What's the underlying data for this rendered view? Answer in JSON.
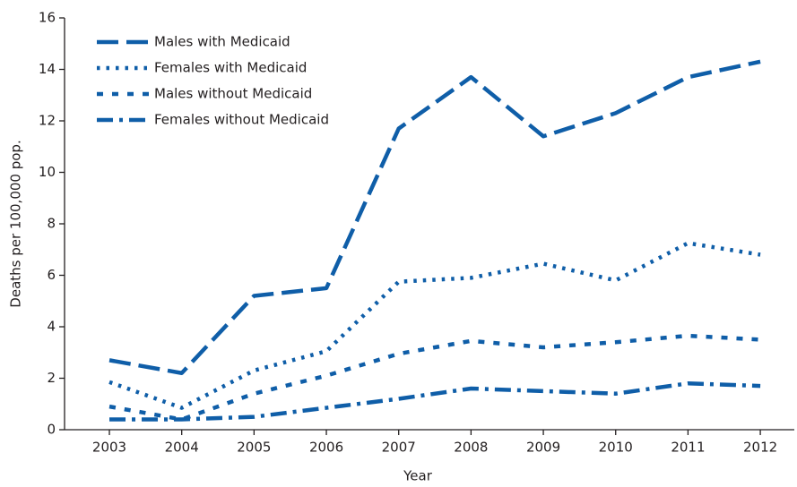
{
  "chart_data": {
    "type": "line",
    "x_label": "Year",
    "y_label": "Deaths per 100,000 pop.",
    "x": [
      2003,
      2004,
      2005,
      2006,
      2007,
      2008,
      2009,
      2010,
      2011,
      2012
    ],
    "series": [
      {
        "name": "Males with Medicaid",
        "color": "#0f5ea8",
        "dash": "long-dash",
        "values": [
          2.7,
          2.2,
          5.2,
          5.5,
          11.7,
          13.7,
          11.4,
          12.3,
          13.7,
          14.3
        ]
      },
      {
        "name": "Females with Medicaid",
        "color": "#0f5ea8",
        "dash": "dot",
        "values": [
          1.85,
          0.85,
          2.3,
          3.05,
          5.75,
          5.9,
          6.45,
          5.8,
          7.25,
          6.8
        ]
      },
      {
        "name": "Males without Medicaid",
        "color": "#0f5ea8",
        "dash": "short-dash",
        "values": [
          0.9,
          0.4,
          1.4,
          2.1,
          2.95,
          3.45,
          3.2,
          3.4,
          3.65,
          3.5
        ]
      },
      {
        "name": "Females without Medicaid",
        "color": "#0f5ea8",
        "dash": "dash-dot",
        "values": [
          0.4,
          0.4,
          0.5,
          0.85,
          1.2,
          1.6,
          1.5,
          1.4,
          1.8,
          1.7
        ]
      }
    ],
    "xlim": [
      2002.38,
      2012.47
    ],
    "xticks": [
      2003,
      2004,
      2005,
      2006,
      2007,
      2008,
      2009,
      2010,
      2011,
      2012
    ],
    "ylim": [
      0,
      16
    ],
    "yticks": [
      0,
      2,
      4,
      6,
      8,
      10,
      12,
      14,
      16
    ],
    "legend": "top-left",
    "grid": false
  }
}
